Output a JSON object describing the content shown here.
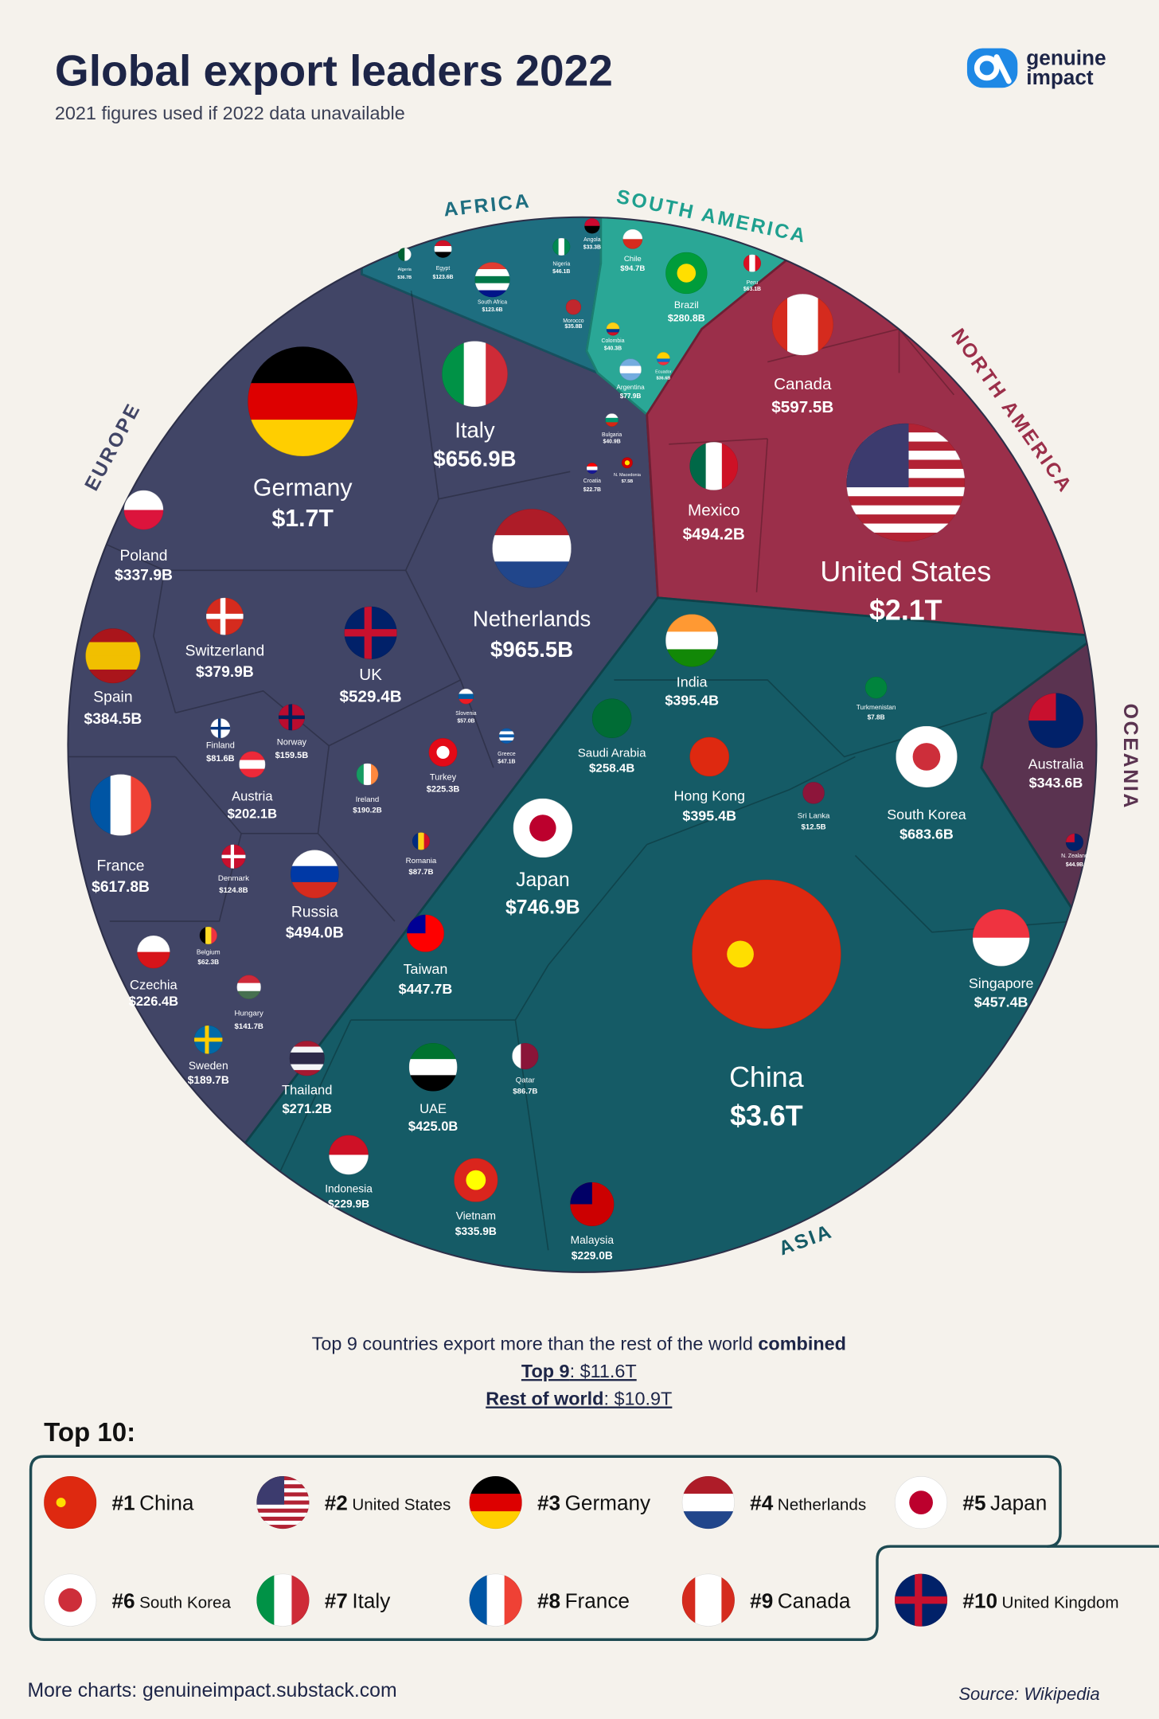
{
  "header": {
    "title": "Global export leaders 2022",
    "subtitle": "2021 figures used if 2022 data unavailable",
    "logo": [
      "genuine",
      "impact"
    ]
  },
  "regions": [
    {
      "name": "AFRICA"
    },
    {
      "name": "SOUTH AMERICA"
    },
    {
      "name": "NORTH AMERICA"
    },
    {
      "name": "EUROPE"
    },
    {
      "name": "OCEANIA"
    },
    {
      "name": "ASIA"
    }
  ],
  "countries": [
    {
      "name": "Germany",
      "value": "$1.7T"
    },
    {
      "name": "Italy",
      "value": "$656.9B"
    },
    {
      "name": "Netherlands",
      "value": "$965.5B"
    },
    {
      "name": "United States",
      "value": "$2.1T"
    },
    {
      "name": "Canada",
      "value": "$597.5B"
    },
    {
      "name": "Mexico",
      "value": "$494.2B"
    },
    {
      "name": "China",
      "value": "$3.6T"
    },
    {
      "name": "Japan",
      "value": "$746.9B"
    },
    {
      "name": "South Korea",
      "value": "$683.6B"
    },
    {
      "name": "India",
      "value": "$395.4B"
    },
    {
      "name": "Saudi Arabia",
      "value": "$258.4B"
    },
    {
      "name": "Hong Kong",
      "value": "$395.4B"
    },
    {
      "name": "Singapore",
      "value": "$457.4B"
    },
    {
      "name": "Taiwan",
      "value": "$447.7B"
    },
    {
      "name": "UAE",
      "value": "$425.0B"
    },
    {
      "name": "Thailand",
      "value": "$271.2B"
    },
    {
      "name": "Indonesia",
      "value": "$229.9B"
    },
    {
      "name": "Vietnam",
      "value": "$335.9B"
    },
    {
      "name": "Malaysia",
      "value": "$229.0B"
    },
    {
      "name": "Qatar",
      "value": "$86.7B"
    },
    {
      "name": "Sri Lanka",
      "value": "$12.5B"
    },
    {
      "name": "Turkmenistan",
      "value": "$7.8B"
    },
    {
      "name": "UK",
      "value": "$529.4B"
    },
    {
      "name": "Switzerland",
      "value": "$379.9B"
    },
    {
      "name": "Poland",
      "value": "$337.9B"
    },
    {
      "name": "Spain",
      "value": "$384.5B"
    },
    {
      "name": "France",
      "value": "$617.8B"
    },
    {
      "name": "Russia",
      "value": "$494.0B"
    },
    {
      "name": "Austria",
      "value": "$202.1B"
    },
    {
      "name": "Finland",
      "value": "$81.6B"
    },
    {
      "name": "Norway",
      "value": "$159.5B"
    },
    {
      "name": "Ireland",
      "value": "$190.2B"
    },
    {
      "name": "Turkey",
      "value": "$225.3B"
    },
    {
      "name": "Slovenia",
      "value": "$57.0B"
    },
    {
      "name": "Greece",
      "value": "$47.1B"
    },
    {
      "name": "Romania",
      "value": "$87.7B"
    },
    {
      "name": "Denmark",
      "value": "$124.8B"
    },
    {
      "name": "Belgium",
      "value": "$62.3B"
    },
    {
      "name": "Czechia",
      "value": "$226.4B"
    },
    {
      "name": "Hungary",
      "value": "$141.7B"
    },
    {
      "name": "Sweden",
      "value": "$189.7B"
    },
    {
      "name": "Bulgaria",
      "value": "$40.9B"
    },
    {
      "name": "N. Macedonia",
      "value": "$7.5B"
    },
    {
      "name": "Croatia",
      "value": "$22.7B"
    },
    {
      "name": "Algeria",
      "value": "$36.7B"
    },
    {
      "name": "Egypt",
      "value": "$123.6B"
    },
    {
      "name": "South Africa",
      "value": "$123.6B"
    },
    {
      "name": "Nigeria",
      "value": "$46.1B"
    },
    {
      "name": "Angola",
      "value": "$33.3B"
    },
    {
      "name": "Morocco",
      "value": "$35.8B"
    },
    {
      "name": "Chile",
      "value": "$94.7B"
    },
    {
      "name": "Brazil",
      "value": "$280.8B"
    },
    {
      "name": "Peru",
      "value": "$63.1B"
    },
    {
      "name": "Colombia",
      "value": "$40.3B"
    },
    {
      "name": "Argentina",
      "value": "$77.9B"
    },
    {
      "name": "Ecuador",
      "value": "$36.6B"
    },
    {
      "name": "Australia",
      "value": "$343.6B"
    },
    {
      "name": "N. Zealand",
      "value": "$44.9B"
    }
  ],
  "summary": {
    "line": "Top 9 countries export more than the rest of the world ",
    "emphasis": "combined",
    "rows": [
      {
        "label": "Top 9",
        "value": ": $11.6T"
      },
      {
        "label": "Rest of world",
        "value": ": $10.9T"
      }
    ]
  },
  "top10": {
    "title": "Top 10:",
    "items": [
      {
        "rank": "#1",
        "name": "China"
      },
      {
        "rank": "#2",
        "name": "United States"
      },
      {
        "rank": "#3",
        "name": "Germany"
      },
      {
        "rank": "#4",
        "name": "Netherlands"
      },
      {
        "rank": "#5",
        "name": "Japan"
      },
      {
        "rank": "#6",
        "name": "South Korea"
      },
      {
        "rank": "#7",
        "name": "Italy"
      },
      {
        "rank": "#8",
        "name": "France"
      },
      {
        "rank": "#9",
        "name": "Canada"
      },
      {
        "rank": "#10",
        "name": "United Kingdom"
      }
    ]
  },
  "footer": {
    "more": "More charts: genuineimpact.substack.com",
    "source": "Source: Wikipedia"
  }
}
